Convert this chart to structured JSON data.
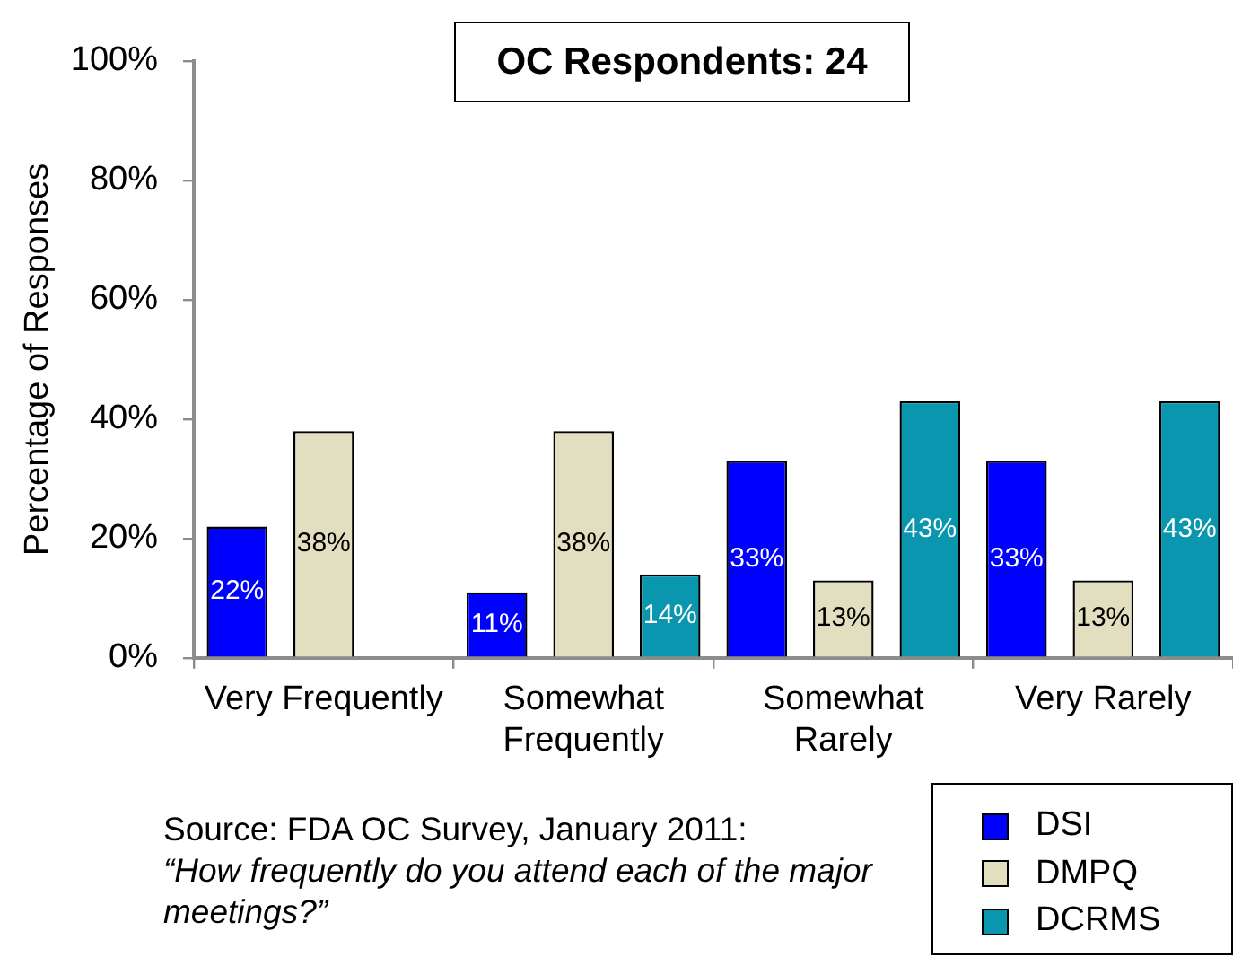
{
  "chart_data": {
    "type": "bar",
    "title": "OC Respondents: 24",
    "ylabel": "Percentage of Responses",
    "categories": [
      "Very Frequently",
      "Somewhat Frequently",
      "Somewhat Rarely",
      "Very Rarely"
    ],
    "series": [
      {
        "name": "DSI",
        "color": "#0000ff",
        "values": [
          22,
          11,
          33,
          33
        ],
        "value_labels": [
          "22%",
          "11%",
          "33%",
          "33%"
        ]
      },
      {
        "name": "DMPQ",
        "color": "#e1dfc0",
        "values": [
          38,
          38,
          13,
          13
        ],
        "value_labels": [
          "38%",
          "38%",
          "13%",
          "13%"
        ]
      },
      {
        "name": "DCRMS",
        "color": "#0a96ae",
        "values": [
          null,
          14,
          43,
          43
        ],
        "value_labels": [
          null,
          "14%",
          "43%",
          "43%"
        ]
      }
    ],
    "ylim": [
      0,
      100
    ],
    "yticks": [
      {
        "value": 0,
        "label": "0%"
      },
      {
        "value": 20,
        "label": "20%"
      },
      {
        "value": 40,
        "label": "40%"
      },
      {
        "value": 60,
        "label": "60%"
      },
      {
        "value": 80,
        "label": "80%"
      },
      {
        "value": 100,
        "label": "100%"
      }
    ],
    "grid": false,
    "legend": "bottom right",
    "annotations": [
      "Source: FDA OC Survey, January 2011:",
      "“How frequently do you attend each of the major meetings?”"
    ]
  }
}
